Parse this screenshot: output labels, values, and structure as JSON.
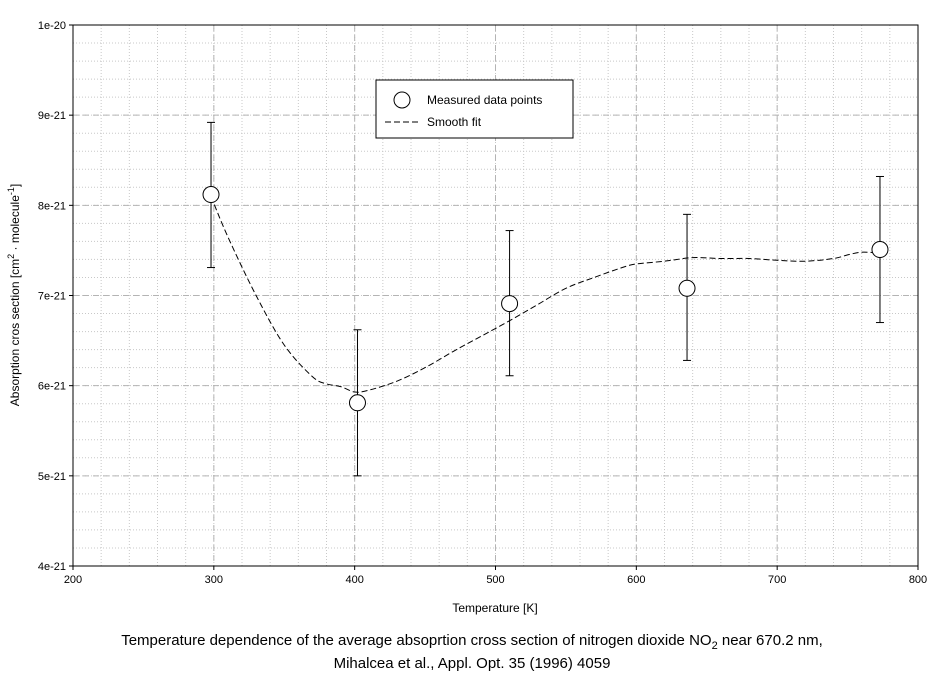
{
  "chart_data": {
    "type": "scatter",
    "xlabel": "Temperature [K]",
    "ylabel": {
      "prefix": "Absorption cros section [cm",
      "sup1": "2",
      "middle": " · molecule",
      "sup2": "-1",
      "suffix": "]"
    },
    "xlim": [
      200,
      800
    ],
    "ylim": [
      4e-21,
      1e-20
    ],
    "x_ticks": [
      200,
      300,
      400,
      500,
      600,
      700,
      800
    ],
    "x_tick_labels": [
      "200",
      "300",
      "400",
      "500",
      "600",
      "700",
      "800"
    ],
    "y_ticks": [
      4e-21,
      5e-21,
      6e-21,
      7e-21,
      8e-21,
      9e-21,
      1e-20
    ],
    "y_tick_labels": [
      "4e-21",
      "5e-21",
      "6e-21",
      "7e-21",
      "8e-21",
      "9e-21",
      "1e-20"
    ],
    "grid": true,
    "legend_position": "top-center",
    "series": [
      {
        "name": "Measured data points",
        "kind": "points-with-errorbars",
        "x": [
          298,
          402,
          510,
          636,
          773
        ],
        "y": [
          8.12e-21,
          5.81e-21,
          6.91e-21,
          7.08e-21,
          7.51e-21
        ],
        "err_low": [
          7.31e-21,
          5e-21,
          6.11e-21,
          6.28e-21,
          6.7e-21
        ],
        "err_high": [
          8.92e-21,
          6.62e-21,
          7.72e-21,
          7.9e-21,
          8.32e-21
        ]
      },
      {
        "name": "Smooth fit",
        "kind": "dashed-line",
        "x": [
          298,
          310,
          330,
          350,
          370,
          380,
          390,
          400,
          410,
          430,
          450,
          470,
          490,
          510,
          530,
          550,
          570,
          590,
          600,
          620,
          640,
          660,
          680,
          700,
          720,
          740,
          750,
          760,
          773
        ],
        "y": [
          8.1e-21,
          7.65e-21,
          7e-21,
          6.45e-21,
          6.1e-21,
          6.02e-21,
          5.99e-21,
          5.93e-21,
          5.95e-21,
          6.05e-21,
          6.2e-21,
          6.38e-21,
          6.55e-21,
          6.72e-21,
          6.9e-21,
          7.08e-21,
          7.2e-21,
          7.31e-21,
          7.35e-21,
          7.38e-21,
          7.42e-21,
          7.41e-21,
          7.41e-21,
          7.39e-21,
          7.38e-21,
          7.41e-21,
          7.45e-21,
          7.48e-21,
          7.47e-21
        ]
      }
    ]
  },
  "caption": {
    "line1_part1": "Temperature dependence of the average absoprtion cross section of nitrogen dioxide NO",
    "line1_sub": "2",
    "line1_part2": " near 670.2 nm,",
    "line2": "Mihalcea et al., Appl. Opt. 35 (1996) 4059"
  },
  "colors": {
    "grid": "#c8c8c8",
    "frame": "#000000",
    "markers": "#000000"
  }
}
